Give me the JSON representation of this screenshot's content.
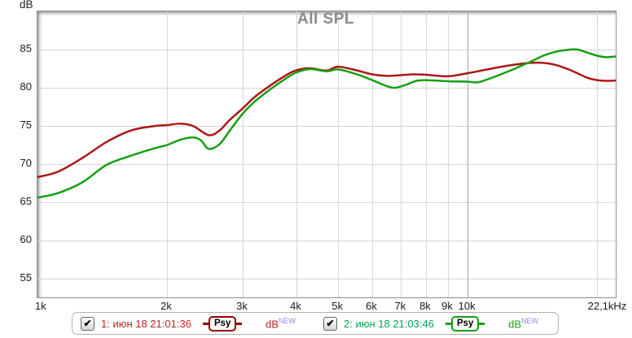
{
  "title": "All SPL",
  "axes": {
    "y_unit": "dB"
  },
  "colors": {
    "title": "#8a8a8a",
    "grid": "#d6d6d6",
    "grid_decade": "#a9a9a9",
    "frame": "#8e8e8e",
    "axis_text": "#1a1a1a"
  },
  "legend": {
    "entries": [
      {
        "checked": true,
        "check_glyph": "✔",
        "label": "1: июн 18 21:01:36",
        "color": "#bf2424",
        "psy_label": "Psy",
        "psy_color": "#990000",
        "unit": "dB",
        "unit_color": "#b22222",
        "unit_sup": "NEW",
        "sup_color": "#8a8aee"
      },
      {
        "checked": true,
        "check_glyph": "✔",
        "label": "2: июн 18 21:03:46",
        "color": "#00a651",
        "psy_label": "Psy",
        "psy_color": "#12a012",
        "unit": "dB",
        "unit_color": "#1ba11b",
        "unit_sup": "NEW",
        "sup_color": "#8a8aee"
      }
    ]
  },
  "chart_data": {
    "type": "line",
    "title": "All SPL",
    "xlabel": "",
    "ylabel": "dB",
    "x_scale": "log",
    "x_range_hz": [
      1000,
      22100
    ],
    "ylim": [
      52.55,
      90.0
    ],
    "grid": true,
    "y_ticks": [
      85,
      80,
      75,
      70,
      65,
      60,
      55
    ],
    "x_ticks": [
      {
        "hz": 1000,
        "label": "1k"
      },
      {
        "hz": 2000,
        "label": "2k"
      },
      {
        "hz": 3000,
        "label": "3k"
      },
      {
        "hz": 4000,
        "label": "4k"
      },
      {
        "hz": 5000,
        "label": "5k"
      },
      {
        "hz": 6000,
        "label": "6k"
      },
      {
        "hz": 7000,
        "label": "7k"
      },
      {
        "hz": 8000,
        "label": "8k"
      },
      {
        "hz": 9000,
        "label": "9k"
      },
      {
        "hz": 10000,
        "label": "10k"
      },
      {
        "hz": 22100,
        "label": "22,1kHz"
      }
    ],
    "x_gridlines_hz": [
      2000,
      3000,
      4000,
      5000,
      6000,
      7000,
      8000,
      9000,
      10000,
      20000
    ],
    "series": [
      {
        "name": "1: июн 18 21:01:36",
        "color": "#ad1717",
        "points": [
          [
            1000,
            68.3
          ],
          [
            1115,
            69.0
          ],
          [
            1271,
            70.8
          ],
          [
            1448,
            72.9
          ],
          [
            1650,
            74.4
          ],
          [
            1880,
            75.0
          ],
          [
            2000,
            75.1
          ],
          [
            2150,
            75.3
          ],
          [
            2300,
            75.0
          ],
          [
            2500,
            73.8
          ],
          [
            2650,
            74.4
          ],
          [
            2800,
            75.8
          ],
          [
            3000,
            77.3
          ],
          [
            3200,
            78.8
          ],
          [
            3500,
            80.4
          ],
          [
            3800,
            81.7
          ],
          [
            4000,
            82.3
          ],
          [
            4300,
            82.55
          ],
          [
            4700,
            82.25
          ],
          [
            5000,
            82.75
          ],
          [
            5500,
            82.3
          ],
          [
            6000,
            81.75
          ],
          [
            6500,
            81.55
          ],
          [
            7000,
            81.65
          ],
          [
            7500,
            81.75
          ],
          [
            8000,
            81.7
          ],
          [
            9000,
            81.5
          ],
          [
            10000,
            81.9
          ],
          [
            11000,
            82.35
          ],
          [
            12000,
            82.75
          ],
          [
            13000,
            83.05
          ],
          [
            14000,
            83.25
          ],
          [
            15000,
            83.25
          ],
          [
            16000,
            83.0
          ],
          [
            17000,
            82.5
          ],
          [
            18000,
            81.9
          ],
          [
            19000,
            81.3
          ],
          [
            20000,
            81.0
          ],
          [
            21000,
            80.9
          ],
          [
            22100,
            80.95
          ]
        ]
      },
      {
        "name": "2: июн 18 21:03:46",
        "color": "#14a014",
        "points": [
          [
            1000,
            65.6
          ],
          [
            1115,
            66.2
          ],
          [
            1271,
            67.6
          ],
          [
            1448,
            69.9
          ],
          [
            1650,
            71.1
          ],
          [
            1880,
            72.1
          ],
          [
            2000,
            72.5
          ],
          [
            2150,
            73.2
          ],
          [
            2300,
            73.5
          ],
          [
            2400,
            73.1
          ],
          [
            2500,
            72.0
          ],
          [
            2650,
            72.6
          ],
          [
            2800,
            74.4
          ],
          [
            3000,
            76.6
          ],
          [
            3200,
            78.2
          ],
          [
            3500,
            79.9
          ],
          [
            3800,
            81.3
          ],
          [
            4000,
            82.0
          ],
          [
            4300,
            82.45
          ],
          [
            4700,
            82.15
          ],
          [
            5000,
            82.4
          ],
          [
            5500,
            81.8
          ],
          [
            6000,
            81.0
          ],
          [
            6500,
            80.2
          ],
          [
            6800,
            80.0
          ],
          [
            7200,
            80.4
          ],
          [
            7600,
            80.9
          ],
          [
            8000,
            81.0
          ],
          [
            9000,
            80.85
          ],
          [
            10000,
            80.8
          ],
          [
            10500,
            80.7
          ],
          [
            11000,
            81.0
          ],
          [
            12000,
            81.8
          ],
          [
            13000,
            82.6
          ],
          [
            14000,
            83.4
          ],
          [
            15000,
            84.2
          ],
          [
            16000,
            84.7
          ],
          [
            17000,
            84.95
          ],
          [
            18000,
            85.0
          ],
          [
            19000,
            84.6
          ],
          [
            20000,
            84.2
          ],
          [
            21000,
            84.0
          ],
          [
            22100,
            84.1
          ]
        ]
      }
    ]
  }
}
